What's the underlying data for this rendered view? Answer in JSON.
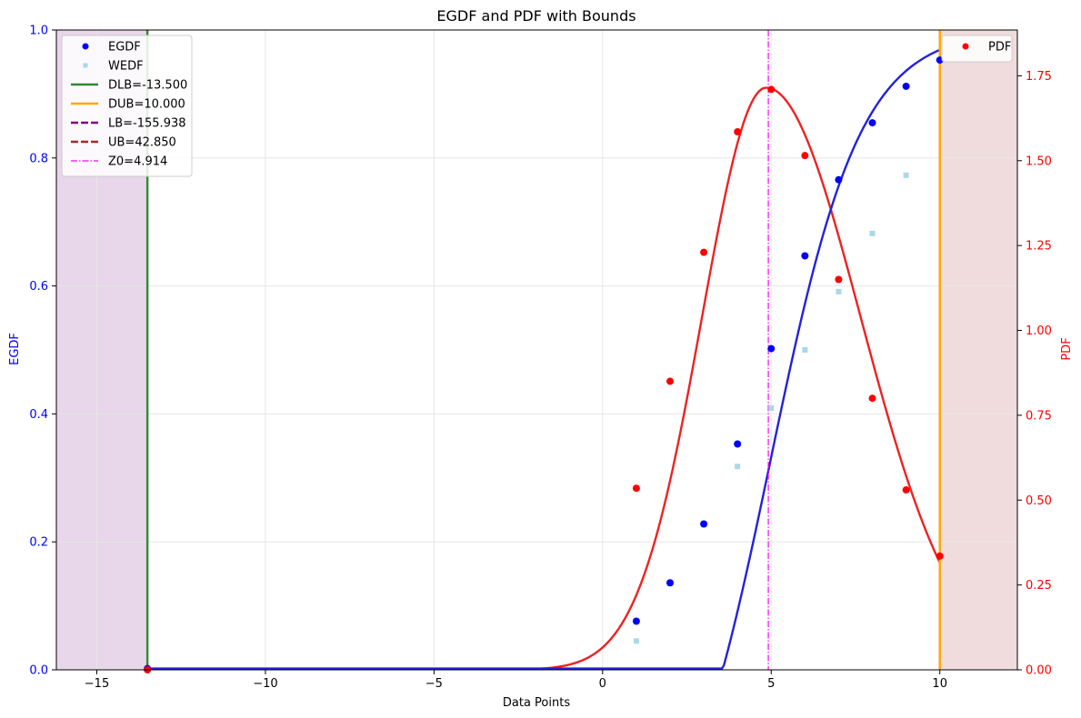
{
  "chart_data": {
    "type": "line",
    "title": "EGDF and PDF with Bounds",
    "xlabel": "Data Points",
    "ylabel_left": "EGDF",
    "ylabel_right": "PDF",
    "xlim": [
      -16.2,
      12.3
    ],
    "ylim_left": [
      0,
      1
    ],
    "ylim_right": [
      0,
      1.885
    ],
    "xticks": [
      -15,
      -10,
      -5,
      0,
      5,
      10
    ],
    "xtick_labels": [
      "−15",
      "−10",
      "−5",
      "0",
      "5",
      "10"
    ],
    "yticks_left": [
      0,
      0.2,
      0.4,
      0.6,
      0.8,
      1.0
    ],
    "ytick_labels_left": [
      "0.0",
      "0.2",
      "0.4",
      "0.6",
      "0.8",
      "1.0"
    ],
    "yticks_right": [
      0,
      0.25,
      0.5,
      0.75,
      1.0,
      1.25,
      1.5,
      1.75
    ],
    "ytick_labels_right": [
      "0.00",
      "0.25",
      "0.50",
      "0.75",
      "1.00",
      "1.25",
      "1.50",
      "1.75"
    ],
    "grid": true,
    "colors": {
      "egdf": "#0000ff",
      "egdf_curve": "#2222dd",
      "wedf": "#add8e6",
      "pdf": "#ff0000",
      "pdf_curve": "#ee2222",
      "dlb": "#2e8b2e",
      "dub": "#ffa500",
      "lb": "#800080",
      "ub": "#a52a2a",
      "z0": "#ff00ff",
      "shade_left": "#e8d6ea",
      "shade_right": "#f0dcdc",
      "left_axis": "#0000ff",
      "right_axis": "#ff0000"
    },
    "bounds": {
      "dlb": -13.5,
      "dub": 10.0,
      "lb": -155.938,
      "ub": 42.85,
      "z0": 4.914
    },
    "points_egdf": {
      "x": [
        -13.5,
        1,
        2,
        3,
        4,
        5,
        6,
        7,
        8,
        9,
        10
      ],
      "y": [
        0.002,
        0.076,
        0.136,
        0.228,
        0.353,
        0.502,
        0.647,
        0.766,
        0.855,
        0.912,
        0.953
      ]
    },
    "points_wedf": {
      "x": [
        1,
        2,
        3,
        4,
        5,
        6,
        7,
        8,
        9
      ],
      "y": [
        0.045,
        0.136,
        0.227,
        0.318,
        0.409,
        0.5,
        0.591,
        0.682,
        0.773
      ]
    },
    "points_pdf": {
      "x": [
        -13.5,
        1,
        2,
        3,
        4,
        5,
        6,
        7,
        8,
        9,
        10
      ],
      "y": [
        0.0,
        0.535,
        0.85,
        1.23,
        1.585,
        1.71,
        1.515,
        1.15,
        0.8,
        0.53,
        0.335
      ]
    },
    "pdf_curve_params": {
      "peak_x": 4.85,
      "peak_y": 1.715,
      "sigma_left": 1.9,
      "sigma_right": 2.8
    },
    "legend_left": [
      {
        "key": "egdf",
        "label": "EGDF",
        "style": "marker"
      },
      {
        "key": "wedf",
        "label": "WEDF",
        "style": "square"
      },
      {
        "key": "dlb",
        "label": "DLB=-13.500",
        "style": "solid"
      },
      {
        "key": "dub",
        "label": "DUB=10.000",
        "style": "solid"
      },
      {
        "key": "lb",
        "label": "LB=-155.938",
        "style": "dashed"
      },
      {
        "key": "ub",
        "label": "UB=42.850",
        "style": "dashed"
      },
      {
        "key": "z0",
        "label": "Z0=4.914",
        "style": "dashdot"
      }
    ],
    "legend_right": [
      {
        "key": "pdf",
        "label": "PDF",
        "style": "marker"
      }
    ]
  }
}
